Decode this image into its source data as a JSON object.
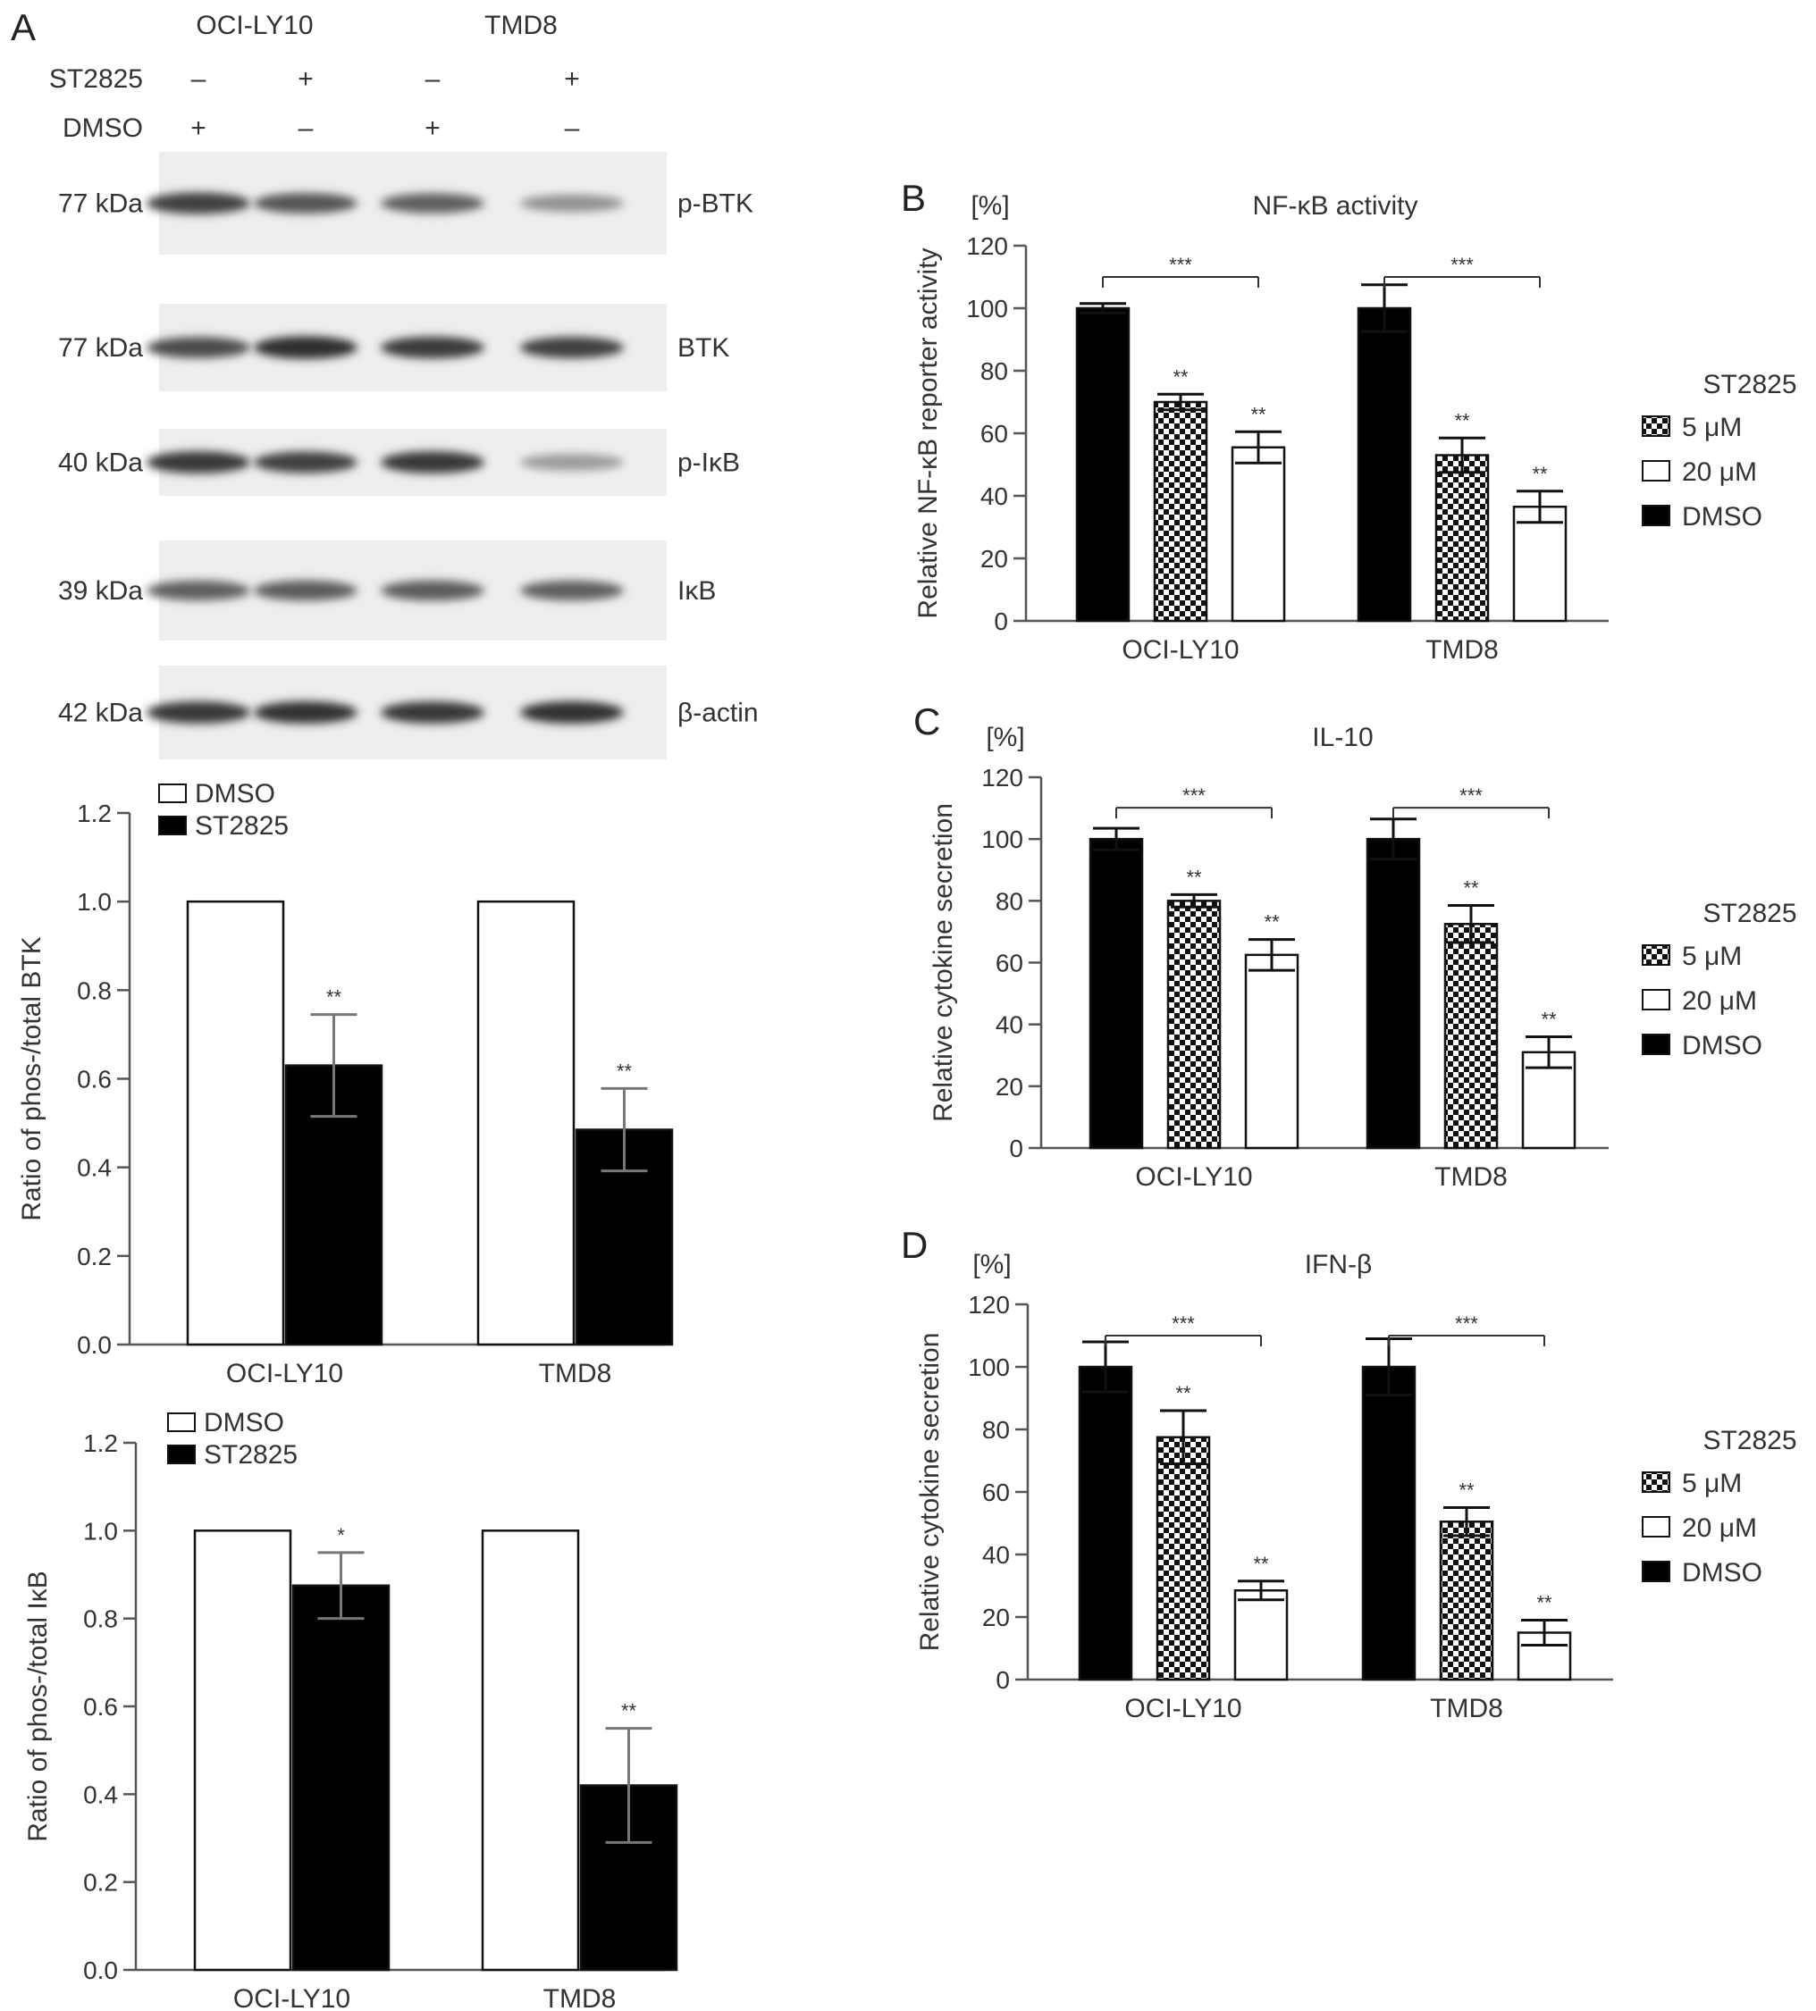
{
  "panel_letters": [
    "A",
    "B",
    "C",
    "D"
  ],
  "blot": {
    "cell_lines": [
      "OCI-LY10",
      "TMD8"
    ],
    "treatments": [
      {
        "label": "ST2825",
        "signs": [
          "–",
          "+",
          "–",
          "+"
        ]
      },
      {
        "label": "DMSO",
        "signs": [
          "+",
          "–",
          "+",
          "–"
        ]
      }
    ],
    "bands": [
      {
        "mw": "77 kDa",
        "protein": "p-BTK",
        "intensity": [
          0.85,
          0.75,
          0.7,
          0.45
        ]
      },
      {
        "mw": "77 kDa",
        "protein": "BTK",
        "intensity": [
          0.8,
          0.95,
          0.88,
          0.85
        ]
      },
      {
        "mw": "40 kDa",
        "protein": "p-IκB",
        "intensity": [
          0.9,
          0.85,
          0.9,
          0.4
        ]
      },
      {
        "mw": "39 kDa",
        "protein": "IκB",
        "intensity": [
          0.7,
          0.72,
          0.72,
          0.7
        ]
      },
      {
        "mw": "42 kDa",
        "protein": "β-actin",
        "intensity": [
          0.9,
          0.92,
          0.9,
          0.92
        ]
      }
    ]
  },
  "chart_data": [
    {
      "type": "bar",
      "id": "A-btk",
      "categories": [
        "OCI-LY10",
        "TMD8"
      ],
      "series": [
        {
          "name": "DMSO",
          "values": [
            1.0,
            1.0
          ],
          "errors": [
            0,
            0
          ],
          "sig": [
            "",
            ""
          ],
          "fill": "#ffffff"
        },
        {
          "name": "ST2825",
          "values": [
            0.63,
            0.485
          ],
          "errors": [
            0.115,
            0.093
          ],
          "sig": [
            "**",
            "**"
          ],
          "fill": "#000000"
        }
      ],
      "ylabel": "Ratio of phos-/total BTK",
      "ylim": [
        0,
        1.2
      ],
      "yticks": [
        "0.0",
        "0.2",
        "0.4",
        "0.6",
        "0.8",
        "1.0",
        "1.2"
      ],
      "legend": "top-left"
    },
    {
      "type": "bar",
      "id": "A-ikb",
      "categories": [
        "OCI-LY10",
        "TMD8"
      ],
      "series": [
        {
          "name": "DMSO",
          "values": [
            1.0,
            1.0
          ],
          "errors": [
            0,
            0
          ],
          "sig": [
            "",
            ""
          ],
          "fill": "#ffffff"
        },
        {
          "name": "ST2825",
          "values": [
            0.875,
            0.42
          ],
          "errors": [
            0.075,
            0.13
          ],
          "sig": [
            "*",
            "**"
          ],
          "fill": "#000000"
        }
      ],
      "ylabel": "Ratio of phos-/total IκB",
      "ylim": [
        0,
        1.2
      ],
      "yticks": [
        "0.0",
        "0.2",
        "0.4",
        "0.6",
        "0.8",
        "1.0",
        "1.2"
      ],
      "legend": "top-left"
    },
    {
      "type": "bar",
      "id": "B",
      "title": "NF-κB activity",
      "unit": "[%]",
      "categories": [
        "OCI-LY10",
        "TMD8"
      ],
      "series": [
        {
          "name": "DMSO",
          "values": [
            100,
            100
          ],
          "errors": [
            1.5,
            7.5
          ],
          "sig": [
            "",
            ""
          ],
          "fill": "#000000"
        },
        {
          "name": "5 μM",
          "values": [
            70,
            53
          ],
          "errors": [
            2.5,
            5.5
          ],
          "sig": [
            "**",
            "**"
          ],
          "fill": "checker"
        },
        {
          "name": "20 μM",
          "values": [
            55.5,
            36.5
          ],
          "errors": [
            5,
            5
          ],
          "sig": [
            "**",
            "**"
          ],
          "fill": "#ffffff"
        }
      ],
      "comparison": "***",
      "ylabel": "Relative NF-κB reporter activity",
      "ylim": [
        0,
        120
      ],
      "yticks": [
        "0",
        "20",
        "40",
        "60",
        "80",
        "100",
        "120"
      ],
      "legend_title": "ST2825",
      "legend": "right"
    },
    {
      "type": "bar",
      "id": "C",
      "title": "IL-10",
      "unit": "[%]",
      "categories": [
        "OCI-LY10",
        "TMD8"
      ],
      "series": [
        {
          "name": "DMSO",
          "values": [
            100,
            100
          ],
          "errors": [
            3.5,
            6.5
          ],
          "sig": [
            "",
            ""
          ],
          "fill": "#000000"
        },
        {
          "name": "5 μM",
          "values": [
            80,
            72.5
          ],
          "errors": [
            2,
            6
          ],
          "sig": [
            "**",
            "**"
          ],
          "fill": "checker"
        },
        {
          "name": "20 μM",
          "values": [
            62.5,
            31
          ],
          "errors": [
            5,
            5
          ],
          "sig": [
            "**",
            "**"
          ],
          "fill": "#ffffff"
        }
      ],
      "comparison": "***",
      "ylabel": "Relative cytokine secretion",
      "ylim": [
        0,
        120
      ],
      "yticks": [
        "0",
        "20",
        "40",
        "60",
        "80",
        "100",
        "120"
      ],
      "legend_title": "ST2825",
      "legend": "right"
    },
    {
      "type": "bar",
      "id": "D",
      "title": "IFN-β",
      "unit": "[%]",
      "categories": [
        "OCI-LY10",
        "TMD8"
      ],
      "series": [
        {
          "name": "DMSO",
          "values": [
            100,
            100
          ],
          "errors": [
            8,
            9
          ],
          "sig": [
            "",
            ""
          ],
          "fill": "#000000"
        },
        {
          "name": "5 μM",
          "values": [
            77.5,
            50.5
          ],
          "errors": [
            8.5,
            4.5
          ],
          "sig": [
            "**",
            "**"
          ],
          "fill": "checker"
        },
        {
          "name": "20 μM",
          "values": [
            28.5,
            15
          ],
          "errors": [
            3,
            4
          ],
          "sig": [
            "**",
            "**"
          ],
          "fill": "#ffffff"
        }
      ],
      "comparison": "***",
      "ylabel": "Relative cytokine secretion",
      "ylim": [
        0,
        120
      ],
      "yticks": [
        "0",
        "20",
        "40",
        "60",
        "80",
        "100",
        "120"
      ],
      "legend_title": "ST2825",
      "legend": "right"
    }
  ]
}
